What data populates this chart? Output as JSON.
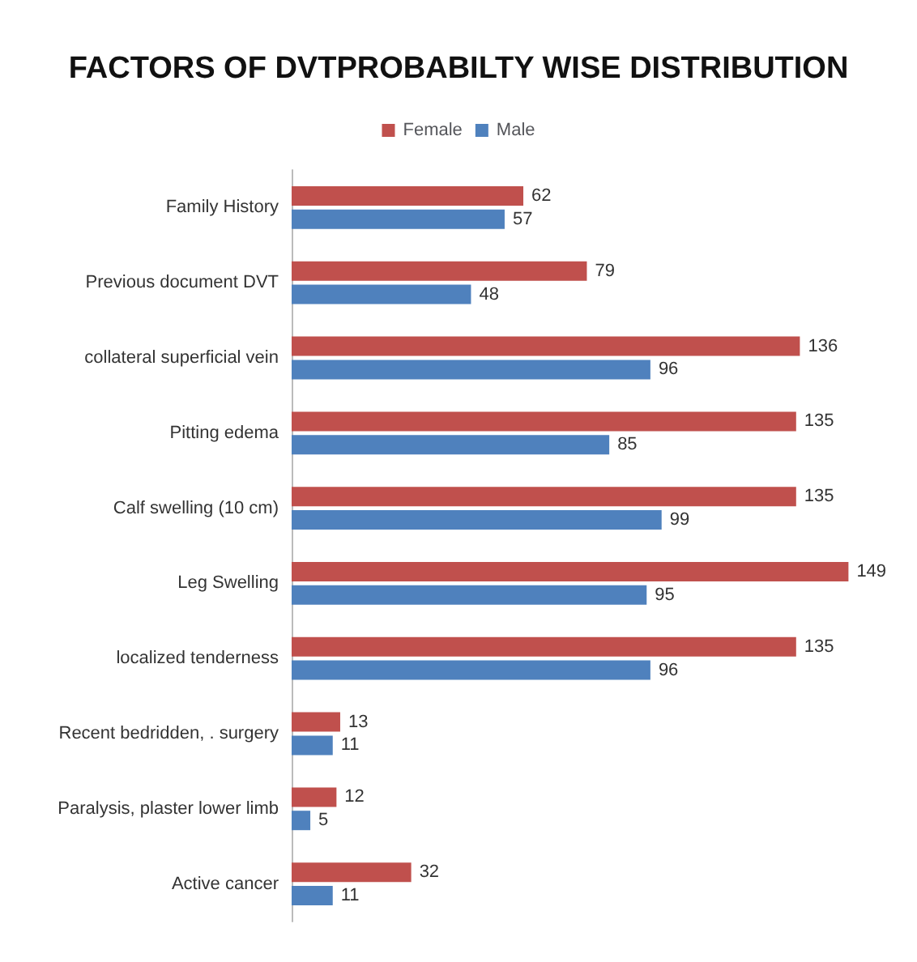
{
  "chart_data": {
    "type": "bar",
    "orientation": "horizontal",
    "title": "FACTORS OF DVTPROBABILTY WISE DISTRIBUTION",
    "categories": [
      "Family History",
      "Previous document DVT",
      "collateral superficial vein",
      "Pitting edema",
      "Calf swelling (10 cm)",
      "Leg Swelling",
      "localized tenderness",
      "Recent bedridden, . surgery",
      "Paralysis, plaster lower limb",
      "Active cancer"
    ],
    "series": [
      {
        "name": "Female",
        "color": "#c0504d",
        "values": [
          62,
          79,
          136,
          135,
          135,
          149,
          135,
          13,
          12,
          32
        ]
      },
      {
        "name": "Male",
        "color": "#4f81bd",
        "values": [
          57,
          48,
          96,
          85,
          99,
          95,
          96,
          11,
          5,
          11
        ]
      }
    ],
    "data_labels": true,
    "legend": "top",
    "grid": false
  }
}
